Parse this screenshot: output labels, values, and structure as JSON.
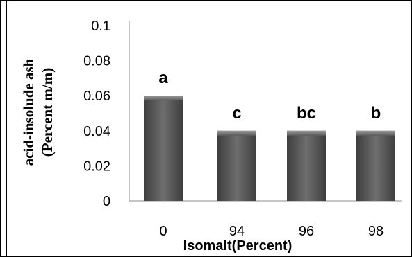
{
  "chart_data": {
    "type": "bar",
    "categories": [
      "0",
      "94",
      "96",
      "98"
    ],
    "values": [
      0.06,
      0.04,
      0.04,
      0.04
    ],
    "bar_labels": [
      "a",
      "c",
      "bc",
      "b"
    ],
    "title": "",
    "xlabel": "Isomalt(Percent)",
    "ylabel_line1": "acid-insolude ash",
    "ylabel_line2": "(Percent  m/m)",
    "ylim": [
      0,
      0.1
    ],
    "yticks": [
      "0",
      "0.02",
      "0.04",
      "0.06",
      "0.08",
      "0.1"
    ],
    "grid": false,
    "legend": "none",
    "bar_color": "#555555"
  }
}
